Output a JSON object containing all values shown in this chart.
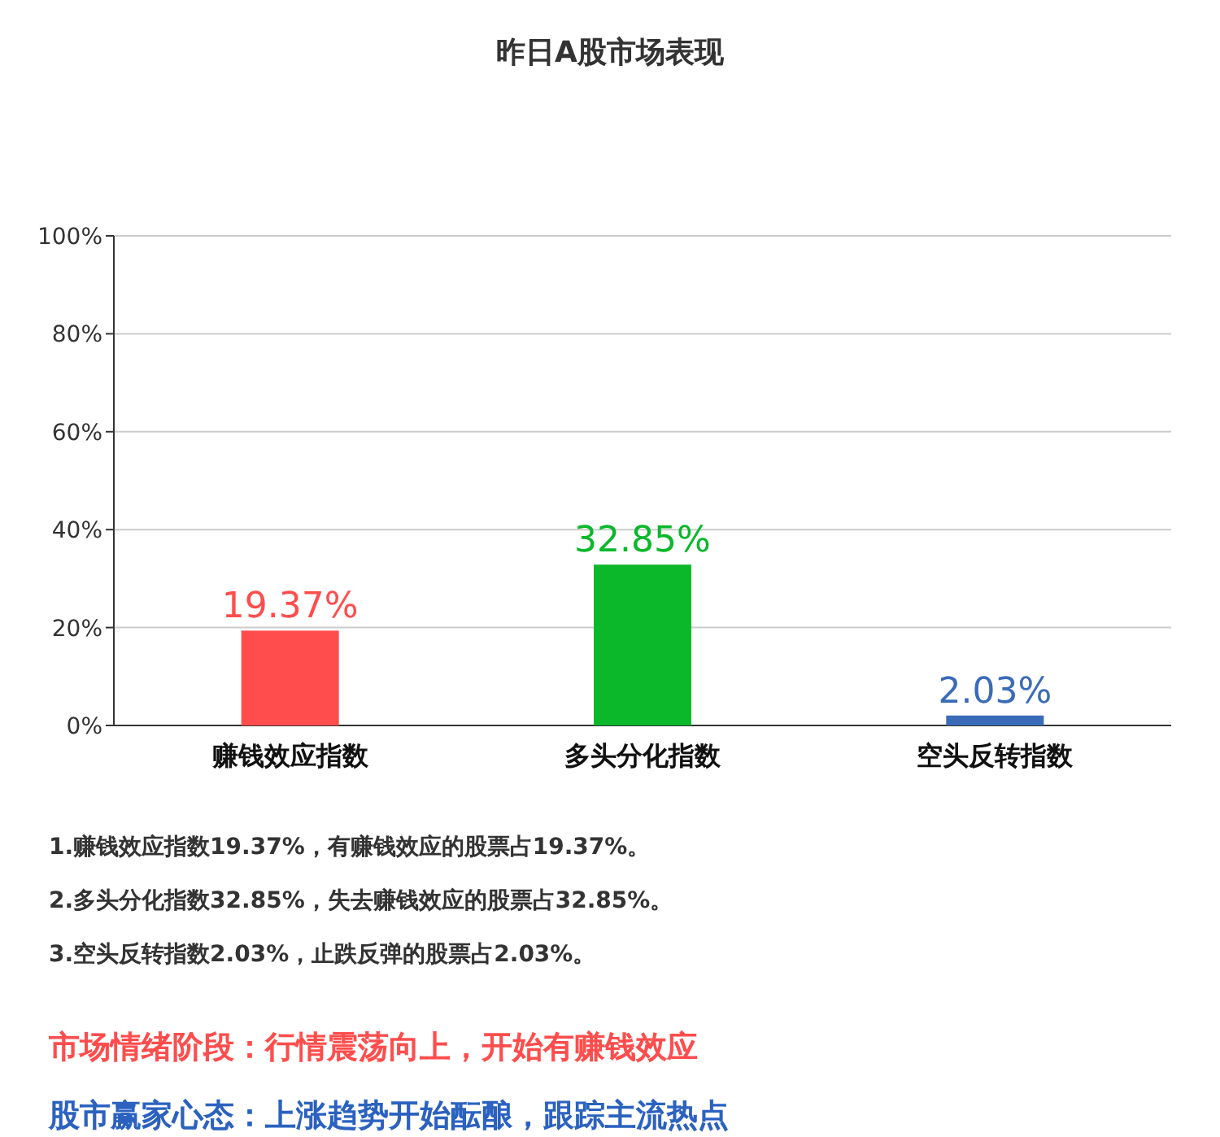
{
  "chart_data": {
    "type": "bar",
    "title": "昨日A股市场表现",
    "categories": [
      "赚钱效应指数",
      "多头分化指数",
      "空头反转指数"
    ],
    "values": [
      19.37,
      32.85,
      2.03
    ],
    "colors": [
      "#ff4d4d",
      "#0ab82a",
      "#3a6bb8"
    ],
    "value_labels": [
      "19.37%",
      "32.85%",
      "2.03%"
    ],
    "ylim": [
      0,
      100
    ],
    "yticks": [
      {
        "value": 0,
        "label": "0%"
      },
      {
        "value": 20,
        "label": "20%"
      },
      {
        "value": 40,
        "label": "40%"
      },
      {
        "value": 60,
        "label": "60%"
      },
      {
        "value": 80,
        "label": "80%"
      },
      {
        "value": 100,
        "label": "100%"
      }
    ],
    "grid": "y",
    "annotations": [
      "1.赚钱效应指数19.37%，有赚钱效应的股票占19.37%。",
      "2.多头分化指数32.85%，失去赚钱效应的股票占32.85%。",
      "3.空头反转指数2.03%，止跌反弹的股票占2.03%。",
      "市场情绪阶段：行情震荡向上，开始有赚钱效应",
      "股市赢家心态：上涨趋势开始酝酿，跟踪主流热点"
    ]
  }
}
